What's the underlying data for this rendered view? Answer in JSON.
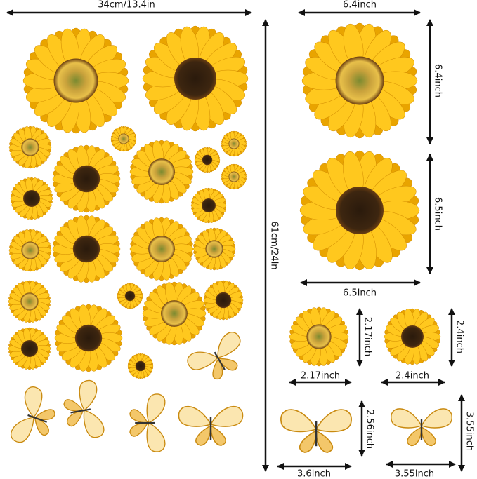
{
  "dimensions": {
    "sheet_width": "34cm/13.4in",
    "sheet_height": "61cm/24in",
    "large_flower_1_width": "6.4inch",
    "large_flower_1_height": "6.4inch",
    "large_flower_2_height": "6.5inch",
    "large_flower_2_width": "6.5inch",
    "small_flower_1_height": "2.17inch",
    "small_flower_1_width": "2.17inch",
    "small_flower_2_height": "2.4inch",
    "small_flower_2_width": "2.4inch",
    "butterfly_1_height": "2.56inch",
    "butterfly_1_width": "3.6inch",
    "butterfly_2_height": "3.55inch",
    "butterfly_2_width": "3.55inch"
  }
}
